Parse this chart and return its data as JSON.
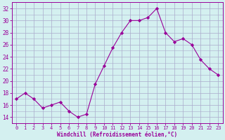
{
  "x": [
    0,
    1,
    2,
    3,
    4,
    5,
    6,
    7,
    8,
    9,
    10,
    11,
    12,
    13,
    14,
    15,
    16,
    17,
    18,
    19,
    20,
    21,
    22,
    23
  ],
  "y": [
    17,
    18,
    17,
    15.5,
    16,
    16.5,
    15,
    14,
    14.5,
    19.5,
    22.5,
    25.5,
    28,
    30,
    30,
    30.5,
    32,
    28,
    26.5,
    27,
    26,
    23.5,
    22,
    21
  ],
  "line_color": "#990099",
  "marker_color": "#990099",
  "bg_color": "#d4f0f0",
  "grid_color": "#aaaacc",
  "xlabel": "Windchill (Refroidissement éolien,°C)",
  "xlabel_color": "#990099",
  "tick_color": "#990099",
  "ylim": [
    13,
    33
  ],
  "xlim": [
    -0.5,
    23.5
  ],
  "yticks": [
    14,
    16,
    18,
    20,
    22,
    24,
    26,
    28,
    30,
    32
  ],
  "xticks": [
    0,
    1,
    2,
    3,
    4,
    5,
    6,
    7,
    8,
    9,
    10,
    11,
    12,
    13,
    14,
    15,
    16,
    17,
    18,
    19,
    20,
    21,
    22,
    23
  ],
  "figsize": [
    3.2,
    2.0
  ],
  "dpi": 100
}
